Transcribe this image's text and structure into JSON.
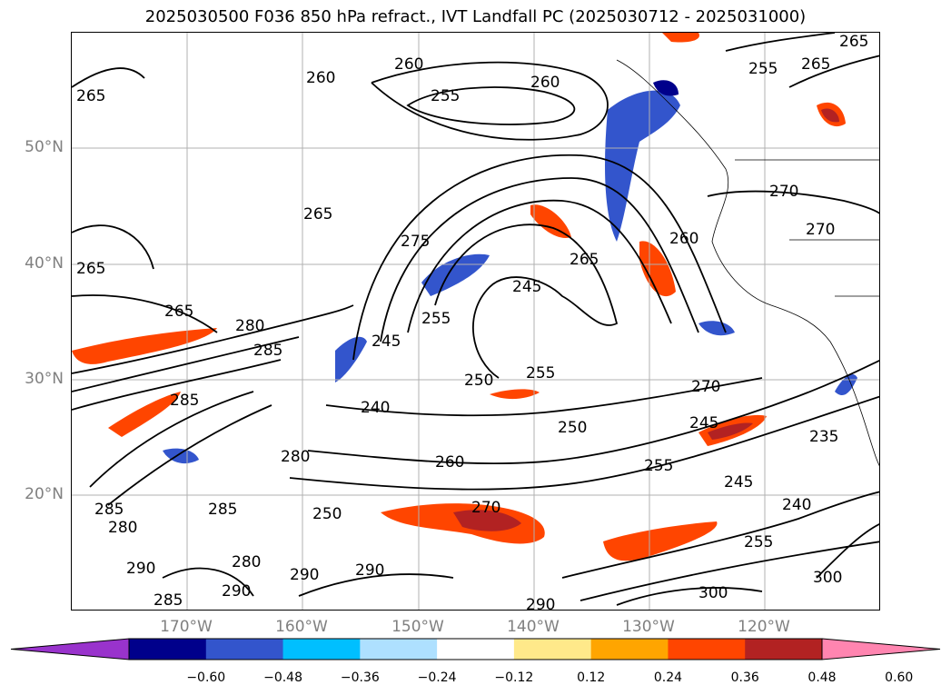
{
  "title": "2025030500 F036 850 hPa refract., IVT Landfall PC (2025030712 - 2025031000)",
  "lat_labels": [
    "50°N",
    "40°N",
    "30°N",
    "20°N"
  ],
  "lon_labels": [
    "170°W",
    "160°W",
    "150°W",
    "140°W",
    "130°W",
    "120°W"
  ],
  "colorbar": {
    "ticks": [
      "−0.60",
      "−0.48",
      "−0.36",
      "−0.24",
      "−0.12",
      "0.12",
      "0.24",
      "0.36",
      "0.48",
      "0.60"
    ],
    "colors": [
      "#9933cc",
      "#00008b",
      "#3355cc",
      "#00bfff",
      "#aee0ff",
      "#ffffff",
      "#ffe98a",
      "#ffa500",
      "#ff4500",
      "#b22222",
      "#ff85b0"
    ]
  },
  "contour_labels": [
    "265",
    "260",
    "255",
    "260",
    "265",
    "260",
    "255",
    "265",
    "265",
    "265",
    "270",
    "275",
    "245",
    "265",
    "260",
    "270",
    "265",
    "280",
    "285",
    "255",
    "245",
    "240",
    "250",
    "255",
    "270",
    "245",
    "235",
    "250",
    "260",
    "255",
    "245",
    "240",
    "255",
    "280",
    "285",
    "285",
    "280",
    "290",
    "285",
    "280",
    "285",
    "290",
    "270",
    "250",
    "290",
    "290",
    "300",
    "300",
    "290"
  ]
}
